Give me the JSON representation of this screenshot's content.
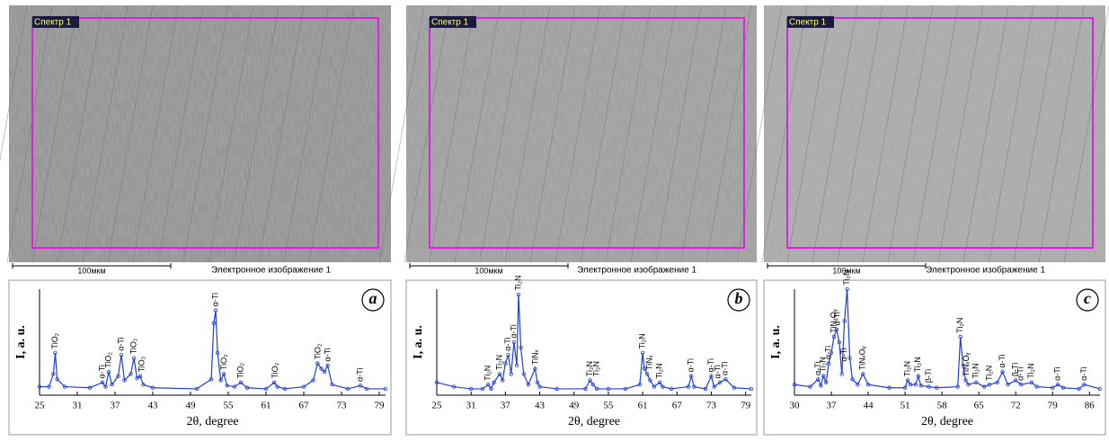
{
  "images": [
    {
      "label": "Спектр 1",
      "scale": "100мкм",
      "caption": "Электронное изображение 1"
    },
    {
      "label": "Спектр 1",
      "scale": "100мкм",
      "caption": "Электронное изображение 1"
    },
    {
      "label": "Спектр 1",
      "scale": "100мкм",
      "caption": "Электронное изображение 1"
    }
  ],
  "chart_data": [
    {
      "type": "line",
      "panel": "a",
      "y_label": "I, a. u.",
      "x_label": "2θ, degree",
      "xlim": [
        25,
        80
      ],
      "ylim": [
        0,
        100
      ],
      "xticks": [
        25,
        31,
        37,
        43,
        49,
        55,
        61,
        67,
        73,
        79
      ],
      "x": [
        25,
        26.5,
        27.2,
        27.5,
        27.8,
        29,
        33,
        35,
        35.5,
        36,
        36.5,
        37.5,
        38,
        38.5,
        39.5,
        40,
        40.5,
        41,
        41.5,
        43,
        50,
        52.3,
        52.7,
        53,
        53.3,
        53.8,
        54.3,
        54.8,
        56,
        57,
        58,
        61,
        62.3,
        62.8,
        64,
        67,
        68.5,
        69.2,
        69.8,
        70.3,
        70.8,
        71.5,
        74,
        76,
        77,
        80
      ],
      "series": [
        {
          "color": "#1f3fd0",
          "values": [
            8,
            8,
            20,
            40,
            15,
            8,
            7,
            12,
            8,
            22,
            10,
            18,
            38,
            14,
            20,
            35,
            16,
            18,
            10,
            7,
            6,
            15,
            68,
            80,
            40,
            14,
            20,
            9,
            8,
            12,
            7,
            6,
            12,
            8,
            6,
            8,
            14,
            30,
            25,
            22,
            28,
            10,
            6,
            9,
            6,
            6
          ]
        }
      ],
      "annotations": [
        {
          "text": "TiO₂",
          "x": 27.5,
          "y": 42
        },
        {
          "text": "α-Ti",
          "x": 35,
          "y": 14
        },
        {
          "text": "TiO₂",
          "x": 36,
          "y": 24
        },
        {
          "text": "α-Ti",
          "x": 38,
          "y": 40
        },
        {
          "text": "TiO₂",
          "x": 40,
          "y": 37
        },
        {
          "text": "TiO₂",
          "x": 41.3,
          "y": 20
        },
        {
          "text": "α-Ti",
          "x": 53,
          "y": 82
        },
        {
          "text": "TiO₂",
          "x": 54.4,
          "y": 22
        },
        {
          "text": "TiO₂",
          "x": 57,
          "y": 14
        },
        {
          "text": "TiO₂",
          "x": 62.5,
          "y": 14
        },
        {
          "text": "TiO₂",
          "x": 69.3,
          "y": 32
        },
        {
          "text": "α-Ti",
          "x": 70.9,
          "y": 30
        },
        {
          "text": "α-Ti",
          "x": 76,
          "y": 11
        }
      ]
    },
    {
      "type": "line",
      "panel": "b",
      "y_label": "I, a. u.",
      "x_label": "2θ, degree",
      "xlim": [
        25,
        80
      ],
      "ylim": [
        0,
        100
      ],
      "xticks": [
        25,
        31,
        37,
        43,
        49,
        55,
        61,
        67,
        73,
        79
      ],
      "x": [
        25,
        28,
        31,
        33,
        34,
        34.5,
        35,
        36,
        36.5,
        37,
        37.5,
        38,
        38.5,
        39,
        39.3,
        39.7,
        40.2,
        41,
        42.2,
        42.6,
        43,
        46,
        51,
        51.8,
        52.3,
        53,
        55,
        58,
        60.5,
        61,
        61.3,
        61.8,
        62.3,
        63,
        64,
        64.5,
        66,
        69,
        69.5,
        70,
        72,
        73,
        73.5,
        74.5,
        75.5,
        77,
        80
      ],
      "series": [
        {
          "color": "#1f3fd0",
          "values": [
            12,
            8,
            6,
            6,
            10,
            6,
            12,
            20,
            14,
            30,
            38,
            20,
            50,
            28,
            95,
            45,
            20,
            10,
            25,
            12,
            8,
            6,
            6,
            14,
            10,
            6,
            6,
            6,
            10,
            40,
            25,
            20,
            14,
            8,
            12,
            8,
            6,
            8,
            18,
            8,
            6,
            18,
            8,
            12,
            15,
            7,
            6
          ]
        }
      ],
      "annotations": [
        {
          "text": "Ti₂N",
          "x": 34,
          "y": 12
        },
        {
          "text": "Ti₂N",
          "x": 36,
          "y": 22
        },
        {
          "text": "α-Ti",
          "x": 37.5,
          "y": 40
        },
        {
          "text": "α-Ti",
          "x": 38.5,
          "y": 52
        },
        {
          "text": "Ti₂N",
          "x": 39.3,
          "y": 97
        },
        {
          "text": "TiNₓ",
          "x": 42.3,
          "y": 27
        },
        {
          "text": "Ti₂N",
          "x": 51.8,
          "y": 16
        },
        {
          "text": "Ti₂N",
          "x": 53,
          "y": 16
        },
        {
          "text": "Ti₂N",
          "x": 61,
          "y": 42
        },
        {
          "text": "TiNₓ",
          "x": 62.3,
          "y": 22
        },
        {
          "text": "Ti₂N",
          "x": 64,
          "y": 14
        },
        {
          "text": "α-Ti",
          "x": 69.5,
          "y": 20
        },
        {
          "text": "α-Ti",
          "x": 73,
          "y": 20
        },
        {
          "text": "α-Ti",
          "x": 74.2,
          "y": 14
        },
        {
          "text": "α-Ti",
          "x": 75.5,
          "y": 17
        }
      ]
    },
    {
      "type": "line",
      "panel": "c",
      "y_label": "I, a. u.",
      "x_label": "2θ, degree",
      "xlim": [
        30,
        88
      ],
      "ylim": [
        0,
        100
      ],
      "xticks": [
        30,
        37,
        44,
        51,
        58,
        65,
        72,
        79,
        86
      ],
      "x": [
        30,
        33,
        34.5,
        35,
        35.5,
        36,
        36.5,
        37,
        37.5,
        38,
        38.5,
        39,
        39.5,
        40,
        40.5,
        41,
        42,
        43,
        44,
        48,
        51,
        51.5,
        52,
        53,
        53.5,
        54,
        55.5,
        57,
        61,
        61.5,
        62,
        62.5,
        63,
        64.5,
        66,
        67,
        68.5,
        69.5,
        70.5,
        72,
        73,
        75,
        76,
        79,
        80,
        81,
        84,
        85,
        88
      ],
      "series": [
        {
          "color": "#1f3fd0",
          "values": [
            10,
            8,
            15,
            9,
            18,
            12,
            30,
            40,
            55,
            62,
            50,
            20,
            70,
            100,
            35,
            15,
            10,
            20,
            10,
            7,
            7,
            14,
            10,
            10,
            18,
            9,
            8,
            7,
            8,
            55,
            28,
            14,
            10,
            12,
            8,
            10,
            12,
            22,
            10,
            14,
            10,
            12,
            8,
            7,
            10,
            7,
            6,
            10,
            6
          ]
        }
      ],
      "annotations": [
        {
          "text": "α-Ti",
          "x": 34.5,
          "y": 17
        },
        {
          "text": "Ti₂N",
          "x": 35.5,
          "y": 20
        },
        {
          "text": "α-Ti",
          "x": 36.5,
          "y": 32
        },
        {
          "text": "TiNₓOᵧ",
          "x": 37.5,
          "y": 57
        },
        {
          "text": "α-Ti",
          "x": 38.2,
          "y": 64
        },
        {
          "text": "α-Ti",
          "x": 39.5,
          "y": 30
        },
        {
          "text": "Ti₂N",
          "x": 40,
          "y": 102
        },
        {
          "text": "TiNₓOᵧ",
          "x": 43,
          "y": 22
        },
        {
          "text": "Ti₂N",
          "x": 51.5,
          "y": 16
        },
        {
          "text": "Ti₂N",
          "x": 53.5,
          "y": 20
        },
        {
          "text": "β-Ti",
          "x": 55.5,
          "y": 10
        },
        {
          "text": "Ti₂N",
          "x": 61.5,
          "y": 57
        },
        {
          "text": "TiNₓOᵧ",
          "x": 62.7,
          "y": 16
        },
        {
          "text": "Ti₂N",
          "x": 64.5,
          "y": 14
        },
        {
          "text": "Ti₂N",
          "x": 67,
          "y": 12
        },
        {
          "text": "α-Ti",
          "x": 69.5,
          "y": 24
        },
        {
          "text": "β-Ti",
          "x": 72,
          "y": 16
        },
        {
          "text": "α-Ti",
          "x": 73,
          "y": 12
        },
        {
          "text": "Ti₂N",
          "x": 75,
          "y": 14
        },
        {
          "text": "α-Ti",
          "x": 80,
          "y": 12
        },
        {
          "text": "α-Ti",
          "x": 85,
          "y": 12
        }
      ]
    }
  ]
}
